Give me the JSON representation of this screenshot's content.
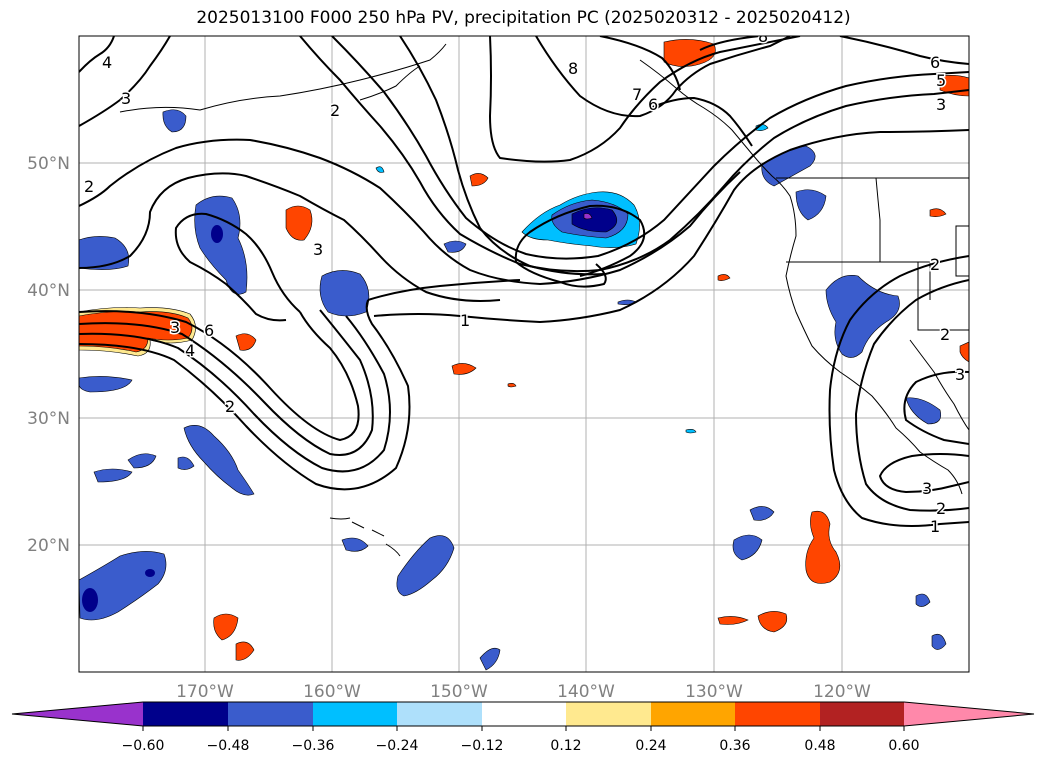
{
  "title": "2025013100 F000 250 hPa PV, precipitation PC (2025020312 - 2025020412)",
  "axes": {
    "lat_labels": [
      "50°N",
      "40°N",
      "30°N",
      "20°N"
    ],
    "lon_labels": [
      "170°W",
      "160°W",
      "150°W",
      "140°W",
      "130°W",
      "120°W"
    ]
  },
  "colorbar": {
    "ticks": [
      "−0.60",
      "−0.48",
      "−0.36",
      "−0.24",
      "−0.12",
      "0.12",
      "0.24",
      "0.36",
      "0.48",
      "0.60"
    ],
    "colors": [
      "#9932cc",
      "#00008b",
      "#3a5ccc",
      "#00bfff",
      "#aee0fb",
      "#ffffff",
      "#ffe98f",
      "#ffa500",
      "#ff4500",
      "#b22222",
      "#ff88aa"
    ]
  },
  "contour_labels": [
    "1",
    "2",
    "3",
    "4",
    "5",
    "6",
    "7",
    "8"
  ],
  "contour_label_list": [
    "4",
    "3",
    "2",
    "2",
    "3",
    "8",
    "7",
    "6",
    "6",
    "5",
    "3",
    "4",
    "2",
    "3",
    "6",
    "1",
    "2",
    "3",
    "2",
    "1",
    "2",
    "3",
    "8"
  ]
}
